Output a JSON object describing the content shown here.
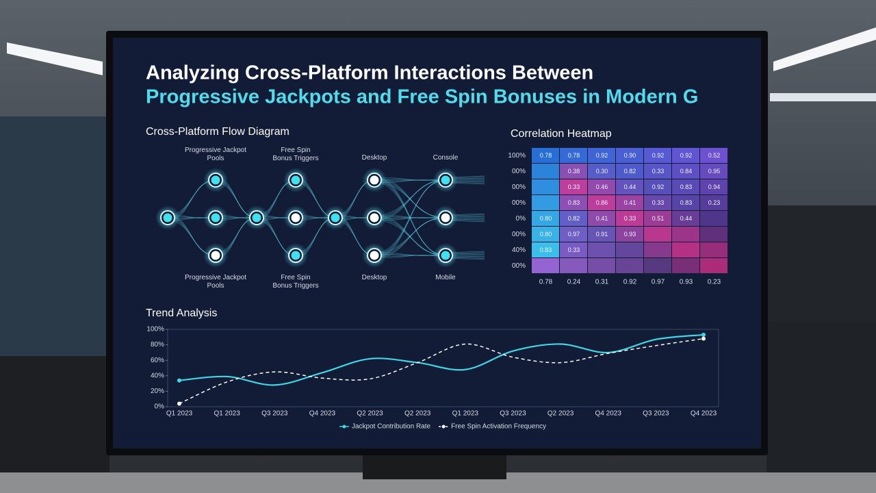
{
  "header": {
    "title_line1": "Analyzing Cross-Platform Interactions Between",
    "title_line2": "Progressive Jackpots and Free Spin Bonuses in Modern G"
  },
  "flow": {
    "title": "Cross-Platform Flow Diagram",
    "top_labels": [
      "Progressive Jackpot Pools",
      "Free Spin Bonus Triggers",
      "Desktop",
      "Console"
    ],
    "bottom_labels": [
      "Progressive Jackpot Pools",
      "Free Spin Bonus Triggers",
      "Desktop",
      "Mobile"
    ]
  },
  "heatmap": {
    "title": "Correlation Heatmap",
    "rows": [
      "100%",
      "00%",
      "00%",
      "00%",
      "0%",
      "00%",
      "40%",
      "00%"
    ],
    "columns": [
      "0.78",
      "0.24",
      "0.31",
      "0.92",
      "0.97",
      "0.93",
      "0.23"
    ],
    "cells": [
      [
        "0.78",
        "0.78",
        "0.92",
        "0.90",
        "0.92",
        "0.92",
        "0.52"
      ],
      [
        null,
        "0.38",
        "0.30",
        "0.82",
        "0.33",
        "0.84",
        "0.95"
      ],
      [
        null,
        "0.33",
        "0.46",
        "0.44",
        "0.92",
        "0.83",
        "0.94"
      ],
      [
        null,
        "0.83",
        "0.86",
        "0.41",
        "0.33",
        "0.83",
        "0.23"
      ],
      [
        "0.80",
        "0.82",
        "0.41",
        "0.33",
        "0.51",
        "0.44",
        null
      ],
      [
        "0.80",
        "0.97",
        "0.91",
        "0.93",
        null,
        null,
        null
      ],
      [
        "0.83",
        "0.33",
        null,
        null,
        null,
        null,
        null
      ],
      [
        null,
        null,
        null,
        null,
        null,
        null,
        null
      ]
    ]
  },
  "chart_data": {
    "type": "line",
    "title": "Trend Analysis",
    "categories": [
      "Q1 2023",
      "Q1 2023",
      "Q3 2023",
      "Q4 2023",
      "Q2 2023",
      "Q2 2023",
      "Q1 2023",
      "Q3 2023",
      "Q2 2023",
      "Q4 2023",
      "Q3 2023",
      "Q4 2023"
    ],
    "series": [
      {
        "name": "Jackpot Contribution Rate",
        "color": "#3fd6e6",
        "dashed": false,
        "values": [
          34,
          39,
          28,
          44,
          62,
          57,
          48,
          72,
          81,
          70,
          87,
          93
        ]
      },
      {
        "name": "Free Spin Activation Frequency",
        "color": "#ffffff",
        "dashed": true,
        "values": [
          4,
          32,
          45,
          37,
          36,
          57,
          81,
          64,
          57,
          69,
          79,
          88
        ]
      }
    ],
    "ylim": [
      0,
      100
    ],
    "yticks": [
      {
        "value": 0,
        "label": "0%"
      },
      {
        "value": 20,
        "label": "20%"
      },
      {
        "value": 40,
        "label": "40%"
      },
      {
        "value": 60,
        "label": "60%"
      },
      {
        "value": 80,
        "label": "80%"
      },
      {
        "value": 100,
        "label": "100%"
      }
    ],
    "legend": "bottom"
  }
}
